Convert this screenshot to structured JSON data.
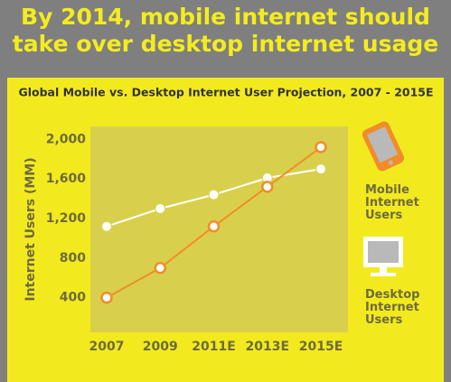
{
  "chart_data": {
    "type": "line",
    "title": "By 2014, mobile internet should take over desktop internet usage",
    "subtitle": "Global Mobile vs. Desktop Internet User Projection, 2007 - 2015E",
    "y_label": "Internet Users (MM)",
    "categories": [
      "2007",
      "2009",
      "2011E",
      "2013E",
      "2015E"
    ],
    "series": [
      {
        "name": "Mobile Internet Users",
        "color": "#f28c28",
        "values": [
          400,
          700,
          1120,
          1520,
          1920
        ]
      },
      {
        "name": "Desktop Internet Users",
        "color": "#ffffff",
        "values": [
          1120,
          1300,
          1440,
          1610,
          1700
        ]
      }
    ],
    "ylim": [
      50,
      2130
    ],
    "yticks": [
      400,
      800,
      {
        "value": 1200,
        "label": "1,200"
      },
      {
        "value": 1600,
        "label": "1,600"
      },
      {
        "value": 2000,
        "label": "2,000"
      }
    ]
  }
}
